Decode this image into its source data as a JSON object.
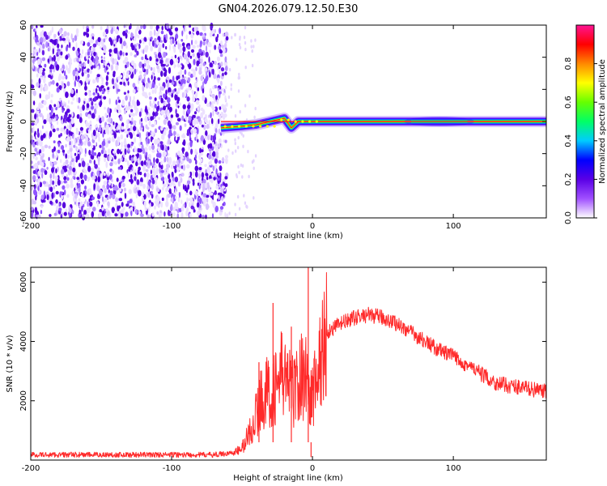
{
  "title": "GN04.2026.079.12.50.E30",
  "chart_data": [
    {
      "type": "heatmap",
      "xlabel": "Height of straight line (km)",
      "ylabel": "Frequency (Hz)",
      "xlim": [
        -200,
        166
      ],
      "ylim": [
        -60,
        60
      ],
      "x_ticks": [
        -200,
        -100,
        0,
        100
      ],
      "y_ticks": [
        -60,
        -40,
        -20,
        0,
        20,
        40,
        60
      ],
      "colorbar": {
        "label": "Normalized spectral amplitude",
        "range": [
          0,
          1
        ],
        "ticks": [
          "0.0",
          "0.2",
          "0.4",
          "0.6",
          "0.8"
        ],
        "colors": [
          "#ffffff",
          "#a050ff",
          "#5a00e6",
          "#0000ff",
          "#00ccff",
          "#00ff66",
          "#66ff00",
          "#ffff00",
          "#ff8800",
          "#ff0000",
          "#ff1493"
        ]
      },
      "signal": {
        "onset_km": -65,
        "center_frequency_hz": 0,
        "drift_points": [
          [
            -65,
            -4
          ],
          [
            -50,
            -3
          ],
          [
            -40,
            -2
          ],
          [
            -30,
            0
          ],
          [
            -20,
            2
          ],
          [
            -15,
            -4
          ],
          [
            -10,
            0
          ],
          [
            0,
            0
          ],
          [
            50,
            0
          ],
          [
            100,
            0
          ],
          [
            166,
            0
          ]
        ]
      }
    },
    {
      "type": "line",
      "xlabel": "Height of straight line (km)",
      "ylabel": "SNR (10 * v/v)",
      "xlim": [
        -200,
        166
      ],
      "ylim": [
        0,
        6500
      ],
      "x_ticks": [
        -200,
        -100,
        0,
        100
      ],
      "y_ticks": [
        2000,
        4000,
        6000
      ],
      "color": "#ff2a2a",
      "series": [
        {
          "name": "SNR",
          "x": [
            -200,
            -150,
            -100,
            -70,
            -55,
            -50,
            -45,
            -40,
            -35,
            -30,
            -25,
            -20,
            -15,
            -10,
            -5,
            -2,
            0,
            5,
            10,
            20,
            30,
            40,
            50,
            60,
            70,
            80,
            90,
            100,
            110,
            115,
            120,
            130,
            140,
            150,
            160,
            166
          ],
          "values": [
            180,
            180,
            180,
            180,
            250,
            400,
            900,
            1500,
            2300,
            2200,
            2600,
            3000,
            2300,
            2600,
            3100,
            2000,
            2200,
            3200,
            4300,
            4600,
            4800,
            4900,
            4800,
            4600,
            4300,
            4000,
            3700,
            3500,
            3200,
            3050,
            2900,
            2600,
            2500,
            2450,
            2350,
            2300
          ]
        }
      ],
      "spikes": [
        {
          "x": -38,
          "value": 3300
        },
        {
          "x": -28,
          "value": 5300
        },
        {
          "x": -15,
          "value": 4500
        },
        {
          "x": -3,
          "value": 6500
        },
        {
          "x": -1,
          "value": 100
        }
      ]
    }
  ]
}
